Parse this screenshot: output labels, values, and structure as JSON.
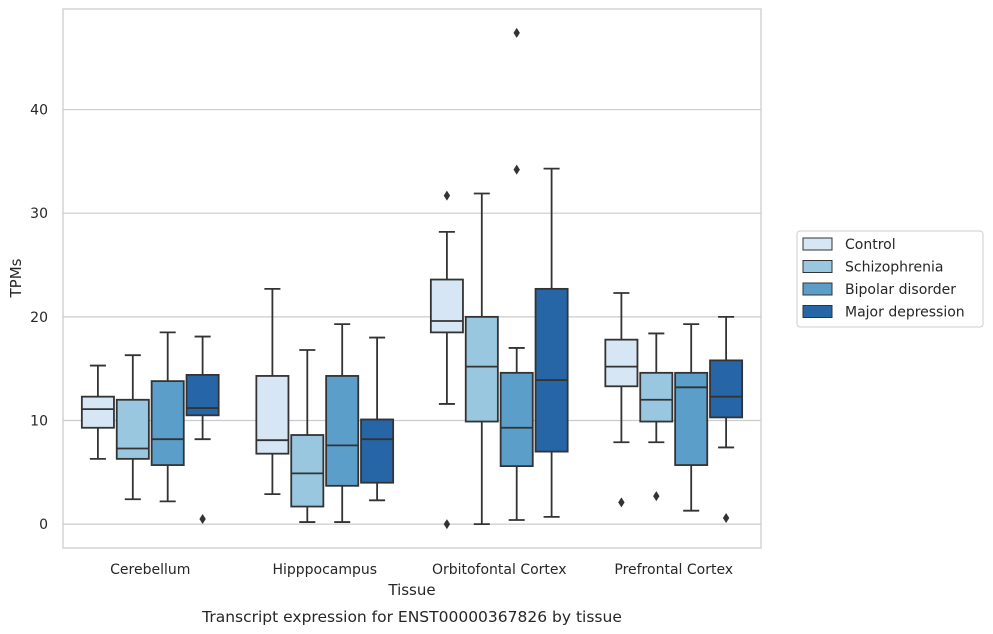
{
  "chart_data": {
    "type": "box",
    "xlabel": "Tissue",
    "ylabel": "TPMs",
    "caption": "Transcript expression for ENST00000367826 by tissue",
    "ylim": [
      -2.3,
      49.7
    ],
    "yticks": [
      0,
      10,
      20,
      30,
      40
    ],
    "grid": "horizontal",
    "legend_position": "right",
    "categories": [
      "Cerebellum",
      "Hipppocampus",
      "Orbitofontal Cortex",
      "Prefrontal Cortex"
    ],
    "series": [
      {
        "name": "Control",
        "color": "#d6e6f4",
        "boxes": [
          {
            "whisker_low": 6.3,
            "q1": 9.3,
            "median": 11.1,
            "q3": 12.3,
            "whisker_high": 15.3,
            "outliers": []
          },
          {
            "whisker_low": 2.9,
            "q1": 6.8,
            "median": 8.1,
            "q3": 14.3,
            "whisker_high": 22.7,
            "outliers": []
          },
          {
            "whisker_low": 11.6,
            "q1": 18.5,
            "median": 19.6,
            "q3": 23.6,
            "whisker_high": 28.2,
            "outliers": [
              31.7,
              0.0
            ]
          },
          {
            "whisker_low": 7.9,
            "q1": 13.3,
            "median": 15.2,
            "q3": 17.8,
            "whisker_high": 22.3,
            "outliers": [
              2.1
            ]
          }
        ]
      },
      {
        "name": "Schizophrenia",
        "color": "#9ac7e0",
        "boxes": [
          {
            "whisker_low": 2.4,
            "q1": 6.3,
            "median": 7.3,
            "q3": 12.0,
            "whisker_high": 16.3,
            "outliers": []
          },
          {
            "whisker_low": 0.2,
            "q1": 1.7,
            "median": 4.9,
            "q3": 8.6,
            "whisker_high": 16.8,
            "outliers": []
          },
          {
            "whisker_low": 0.0,
            "q1": 9.9,
            "median": 15.2,
            "q3": 20.0,
            "whisker_high": 31.9,
            "outliers": []
          },
          {
            "whisker_low": 7.9,
            "q1": 9.9,
            "median": 12.0,
            "q3": 14.6,
            "whisker_high": 18.4,
            "outliers": [
              2.7
            ]
          }
        ]
      },
      {
        "name": "Bipolar disorder",
        "color": "#5b9ec9",
        "boxes": [
          {
            "whisker_low": 2.2,
            "q1": 5.7,
            "median": 8.2,
            "q3": 13.8,
            "whisker_high": 18.5,
            "outliers": []
          },
          {
            "whisker_low": 0.2,
            "q1": 3.7,
            "median": 7.6,
            "q3": 14.3,
            "whisker_high": 19.3,
            "outliers": []
          },
          {
            "whisker_low": 0.4,
            "q1": 5.6,
            "median": 9.3,
            "q3": 14.6,
            "whisker_high": 17.0,
            "outliers": [
              47.4,
              34.2
            ]
          },
          {
            "whisker_low": 1.3,
            "q1": 5.7,
            "median": 13.2,
            "q3": 14.6,
            "whisker_high": 19.3,
            "outliers": []
          }
        ]
      },
      {
        "name": "Major depression",
        "color": "#2666a6",
        "boxes": [
          {
            "whisker_low": 8.2,
            "q1": 10.5,
            "median": 11.2,
            "q3": 14.4,
            "whisker_high": 18.1,
            "outliers": [
              0.5
            ]
          },
          {
            "whisker_low": 2.3,
            "q1": 4.0,
            "median": 8.2,
            "q3": 10.1,
            "whisker_high": 18.0,
            "outliers": []
          },
          {
            "whisker_low": 0.7,
            "q1": 7.0,
            "median": 13.9,
            "q3": 22.7,
            "whisker_high": 34.3,
            "outliers": []
          },
          {
            "whisker_low": 7.4,
            "q1": 10.3,
            "median": 12.3,
            "q3": 15.8,
            "whisker_high": 20.0,
            "outliers": [
              0.6
            ]
          }
        ]
      }
    ]
  }
}
